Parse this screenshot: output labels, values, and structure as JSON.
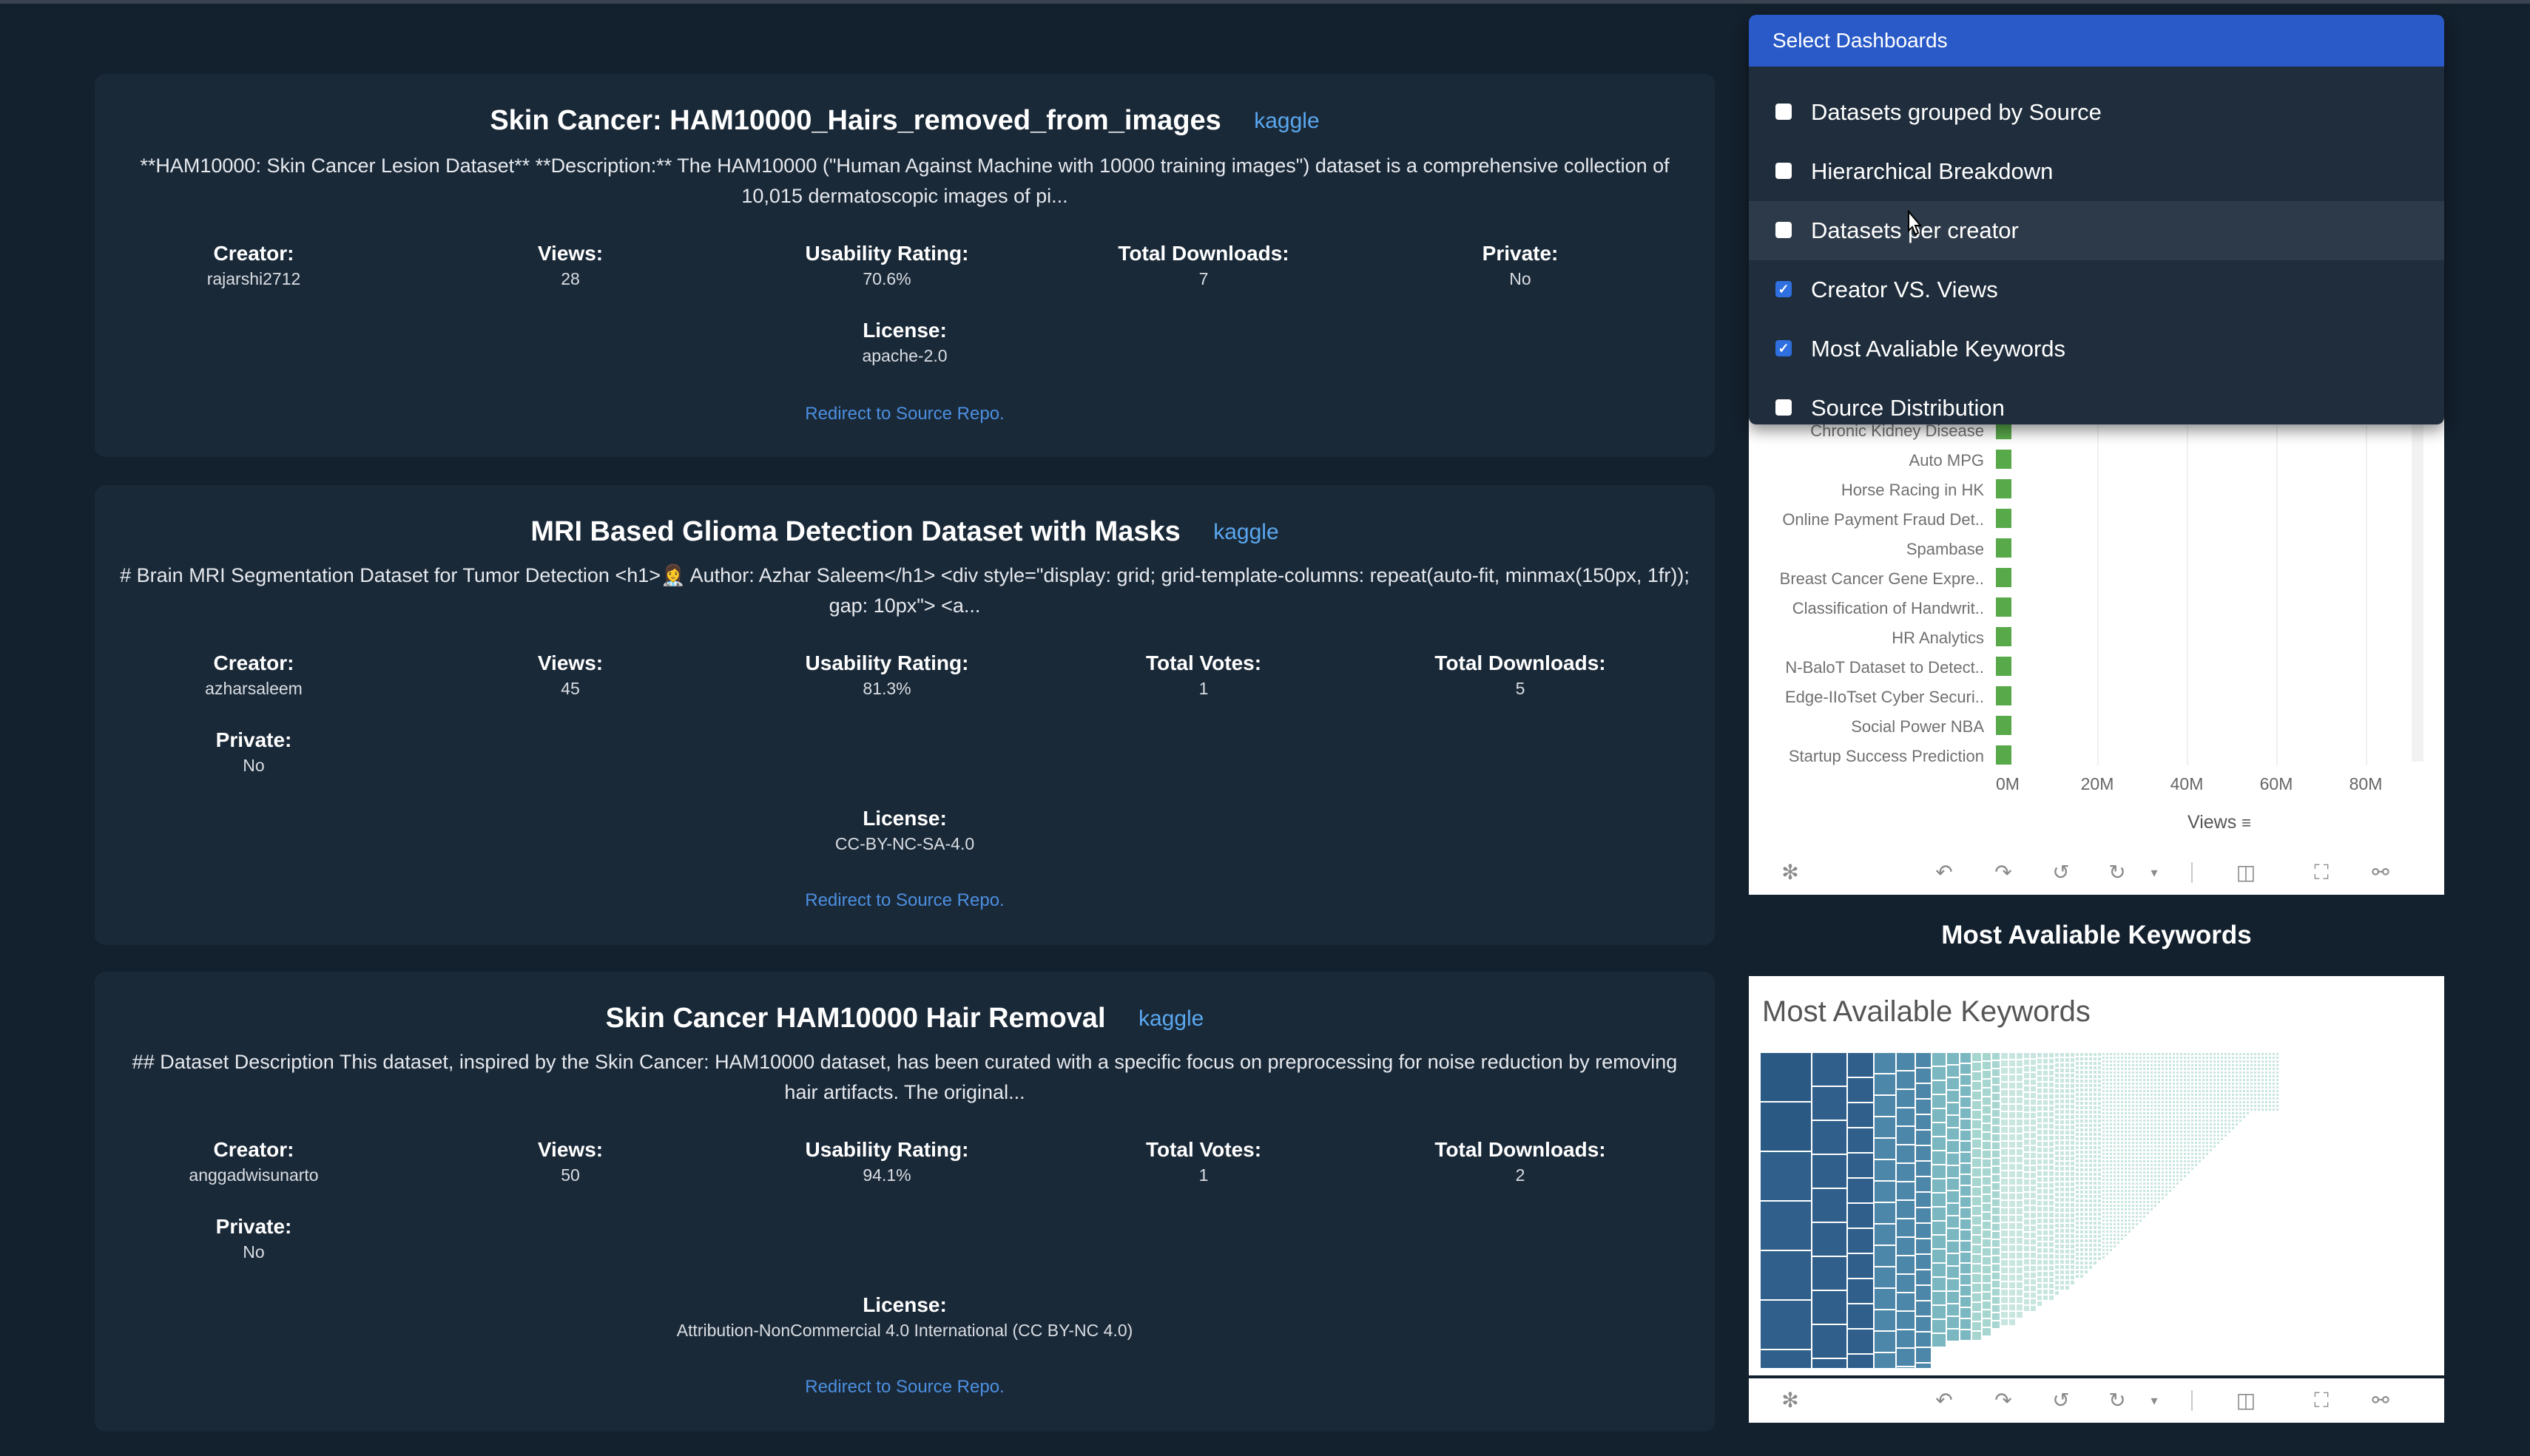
{
  "datasets": [
    {
      "title": "Skin Cancer: HAM10000_Hairs_removed_from_images",
      "source": "kaggle",
      "description": "**HAM10000: Skin Cancer Lesion Dataset** **Description:** The HAM10000 (\"Human Against Machine with 10000 training images\") dataset is a comprehensive collection of 10,015 dermatoscopic images of pi...",
      "fields": [
        {
          "label": "Creator:",
          "value": "rajarshi2712"
        },
        {
          "label": "Views:",
          "value": "28"
        },
        {
          "label": "Usability Rating:",
          "value": "70.6%"
        },
        {
          "label": "Total Downloads:",
          "value": "7"
        },
        {
          "label": "Private:",
          "value": "No"
        },
        {
          "label": "License:",
          "value": "apache-2.0"
        }
      ],
      "redirect": "Redirect to Source Repo."
    },
    {
      "title": "MRI Based Glioma Detection Dataset with Masks",
      "source": "kaggle",
      "description": "# Brain MRI Segmentation Dataset for Tumor Detection <h1>👩‍⚕️ Author: Azhar Saleem</h1> <div style=\"display: grid; grid-template-columns: repeat(auto-fit, minmax(150px, 1fr)); gap: 10px\"> <a...",
      "fields": [
        {
          "label": "Creator:",
          "value": "azharsaleem"
        },
        {
          "label": "Views:",
          "value": "45"
        },
        {
          "label": "Usability Rating:",
          "value": "81.3%"
        },
        {
          "label": "Total Votes:",
          "value": "1"
        },
        {
          "label": "Total Downloads:",
          "value": "5"
        },
        {
          "label": "Private:",
          "value": "No"
        },
        {
          "label": "License:",
          "value": "CC-BY-NC-SA-4.0"
        }
      ],
      "redirect": "Redirect to Source Repo."
    },
    {
      "title": "Skin Cancer HAM10000 Hair Removal",
      "source": "kaggle",
      "description": "## Dataset Description This dataset, inspired by the Skin Cancer: HAM10000 dataset, has been curated with a specific focus on preprocessing for noise reduction by removing hair artifacts. The original...",
      "fields": [
        {
          "label": "Creator:",
          "value": "anggadwisunarto"
        },
        {
          "label": "Views:",
          "value": "50"
        },
        {
          "label": "Usability Rating:",
          "value": "94.1%"
        },
        {
          "label": "Total Votes:",
          "value": "1"
        },
        {
          "label": "Total Downloads:",
          "value": "2"
        },
        {
          "label": "Private:",
          "value": "No"
        },
        {
          "label": "License:",
          "value": "Attribution-NonCommercial 4.0 International (CC BY-NC 4.0)"
        }
      ],
      "redirect": "Redirect to Source Repo."
    }
  ],
  "dashboard_selector": {
    "header": "Select Dashboards",
    "options": [
      {
        "label": "Datasets grouped by Source",
        "checked": false
      },
      {
        "label": "Hierarchical Breakdown",
        "checked": false
      },
      {
        "label": "Datasets per creator",
        "checked": false
      },
      {
        "label": "Creator VS. Views",
        "checked": true
      },
      {
        "label": "Most Avaliable Keywords",
        "checked": true
      },
      {
        "label": "Source Distribution",
        "checked": false
      }
    ]
  },
  "chart_data": {
    "type": "bar",
    "orientation": "horizontal",
    "categories": [
      "Chronic Kidney Disease",
      "Auto MPG",
      "Horse Racing in HK",
      "Online Payment Fraud Det..",
      "Spambase",
      "Breast Cancer Gene Expre..",
      "Classification of Handwrit..",
      "HR Analytics",
      "N-BaloT Dataset to Detect..",
      "Edge-IIoTset Cyber Securi..",
      "Social Power NBA",
      "Startup Success Prediction"
    ],
    "values": [
      800000,
      800000,
      800000,
      800000,
      800000,
      800000,
      800000,
      800000,
      800000,
      800000,
      800000,
      800000
    ],
    "xlabel": "Views",
    "xticks": [
      "0M",
      "20M",
      "40M",
      "60M",
      "80M"
    ],
    "xlim": [
      0,
      85000000
    ],
    "grid": true,
    "color": "#58a94a"
  },
  "keywords_section": {
    "heading": "Most Avaliable Keywords",
    "panel_title": "Most Available Keywords",
    "treemap_colors": [
      "#2f5f8a",
      "#4c86a8",
      "#7bb7c0",
      "#a7d6d0",
      "#c8e6df"
    ]
  },
  "toolbar_icons": [
    "tableau-logo-icon",
    "undo-icon",
    "redo-icon",
    "revert-icon",
    "refresh-icon",
    "dropdown-icon",
    "present-icon",
    "fullscreen-icon",
    "share-icon"
  ]
}
